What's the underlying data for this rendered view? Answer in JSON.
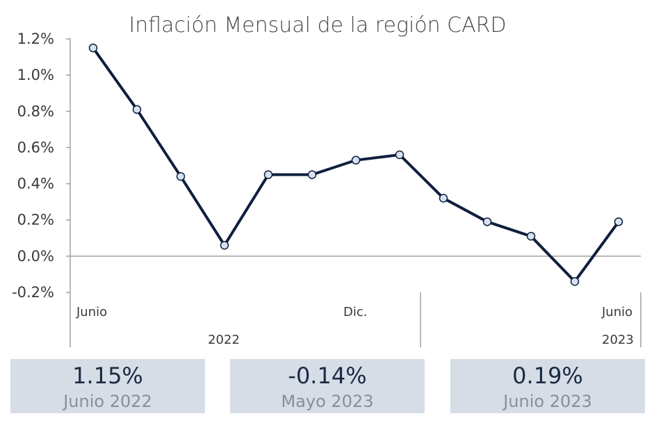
{
  "chart_data": {
    "type": "line",
    "title": "Inflación Mensual de la región CARD",
    "x": [
      "2022-06",
      "2022-07",
      "2022-08",
      "2022-09",
      "2022-10",
      "2022-11",
      "2022-12",
      "2023-01",
      "2023-02",
      "2023-03",
      "2023-04",
      "2023-05",
      "2023-06"
    ],
    "series": [
      {
        "values": [
          1.15,
          0.81,
          0.44,
          0.06,
          0.45,
          0.45,
          0.53,
          0.56,
          0.32,
          0.19,
          0.11,
          -0.14,
          0.19
        ]
      }
    ],
    "ylim": [
      -0.2,
      1.2
    ],
    "yticks": [
      "1.2%",
      "1.0%",
      "0.8%",
      "0.6%",
      "0.4%",
      "0.2%",
      "0.0%",
      "-0.2%"
    ],
    "xtick_labels": {
      "month_start": "Junio",
      "month_dec": "Dic.",
      "month_end": "Junio",
      "year_1": "2022",
      "year_2": "2023"
    },
    "colors": {
      "line": "#0e1f3d",
      "marker_fill": "#d6e2f0",
      "axis": "#a0a0a0"
    }
  },
  "cards": [
    {
      "value": "1.15%",
      "label": "Junio 2022"
    },
    {
      "value": "-0.14%",
      "label": "Mayo 2023"
    },
    {
      "value": "0.19%",
      "label": "Junio 2023"
    }
  ]
}
